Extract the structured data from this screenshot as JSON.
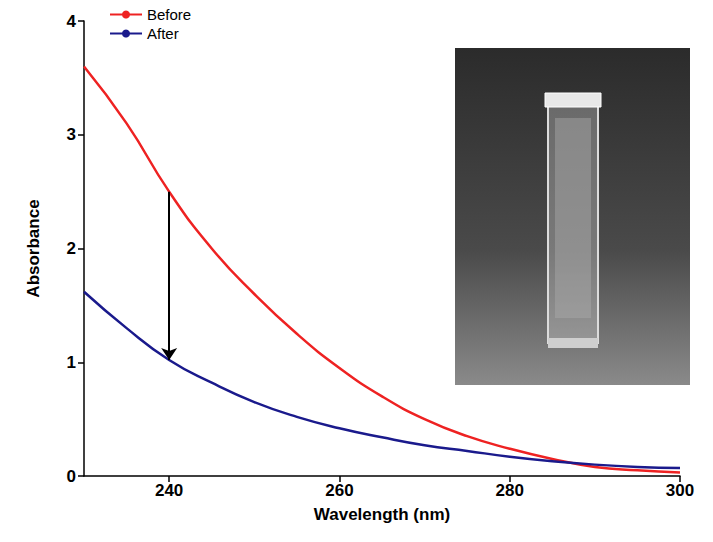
{
  "chart_data": {
    "type": "line",
    "x_label": "Wavelength (nm)",
    "y_label": "Absorbance",
    "x": [
      230,
      235,
      240,
      245,
      250,
      255,
      260,
      265,
      270,
      275,
      280,
      285,
      290,
      295,
      300
    ],
    "series": [
      {
        "name": "Before",
        "color": "#ee2222",
        "values": [
          3.6,
          3.1,
          2.5,
          2.0,
          1.6,
          1.25,
          0.95,
          0.7,
          0.5,
          0.35,
          0.24,
          0.15,
          0.08,
          0.05,
          0.03
        ]
      },
      {
        "name": "After",
        "color": "#1a1a8c",
        "values": [
          1.62,
          1.3,
          1.02,
          0.82,
          0.65,
          0.52,
          0.42,
          0.34,
          0.27,
          0.22,
          0.17,
          0.13,
          0.1,
          0.08,
          0.07
        ]
      }
    ],
    "xlim": [
      230,
      300
    ],
    "xticks": [
      240,
      260,
      280,
      300
    ],
    "ylim": [
      0,
      4
    ],
    "yticks": [
      0,
      1,
      2,
      3,
      4
    ],
    "grid": false,
    "legend": "upper left"
  }
}
